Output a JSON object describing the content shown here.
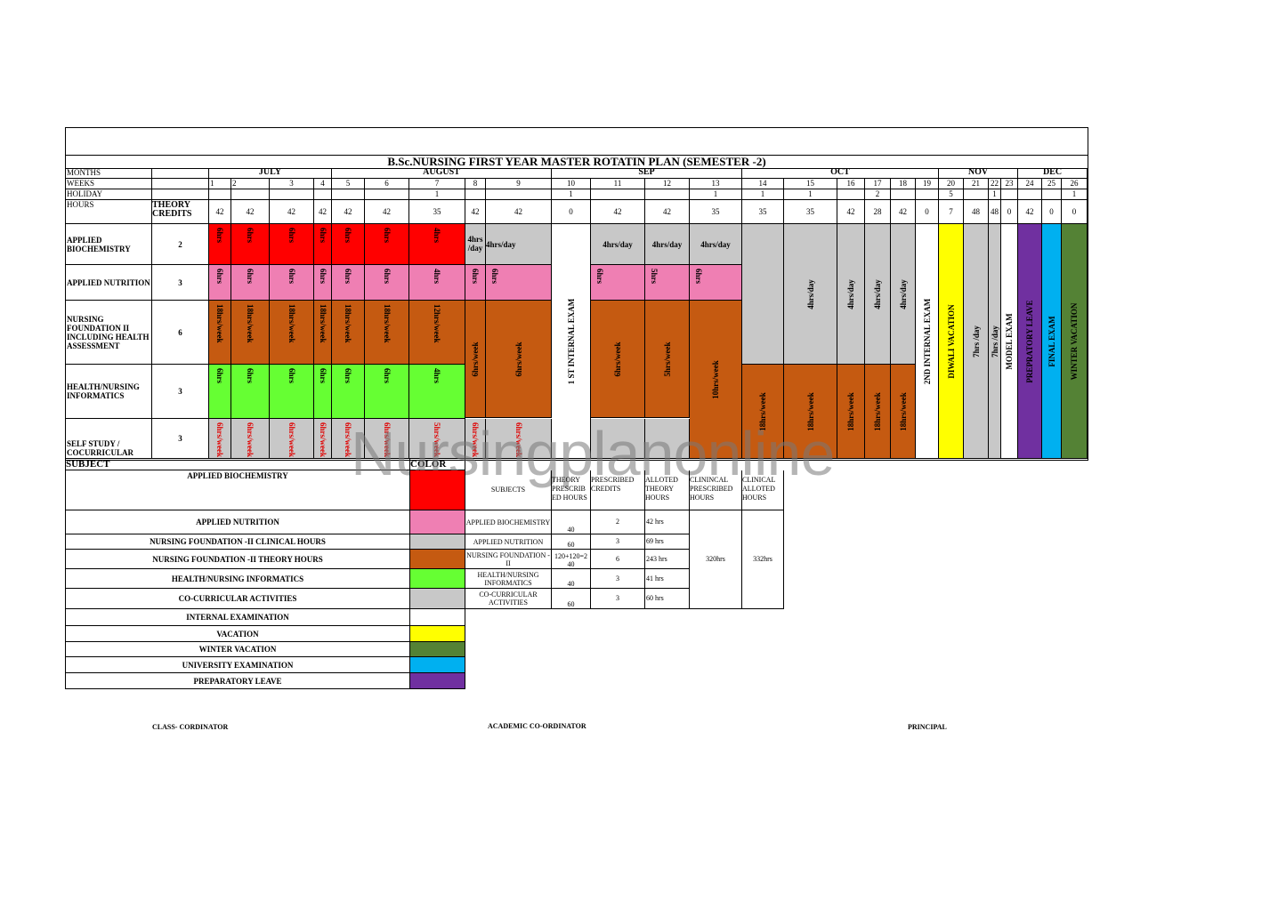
{
  "title": "B.Sc.NURSING FIRST YEAR MASTER ROTATIN PLAN (SEMESTER -2)",
  "row_labels": {
    "months": "MONTHS",
    "weeks": "WEEKS",
    "holiday": "HOLIDAY",
    "hours": "HOURS",
    "theory_credits": "THEORY CREDITS",
    "subject": "SUBJECT",
    "color": "COLOR"
  },
  "months": [
    "JULY",
    "AUGUST",
    "SEP",
    "OCT",
    "NOV",
    "DEC"
  ],
  "weeks": [
    "1",
    "2",
    "3",
    "4",
    "5",
    "6",
    "7",
    "8",
    "9",
    "10",
    "11",
    "12",
    "13",
    "14",
    "15",
    "16",
    "17",
    "18",
    "19",
    "20",
    "21",
    "22",
    "23",
    "24",
    "25",
    "26"
  ],
  "holidays": {
    "w7": "1",
    "w10": "1",
    "w13": "1",
    "w14": "1",
    "w15": "1",
    "w17": "2",
    "w20": "5",
    "w22": "1",
    "w26": "1"
  },
  "hours": [
    "42",
    "42",
    "42",
    "42",
    "42",
    "42",
    "35",
    "42",
    "42",
    "0",
    "42",
    "42",
    "35",
    "35",
    "35",
    "42",
    "28",
    "42",
    "0",
    "7",
    "48",
    "48",
    "0",
    "42",
    "0",
    "0"
  ],
  "subjects": [
    {
      "name": "APPLIED BIOCHEMISTRY",
      "credits": "2"
    },
    {
      "name": "APPLIED NUTRITION",
      "credits": "3"
    },
    {
      "name": "NURSING FOUNDATION II INCLUDING HEALTH ASSESSMENT",
      "credits": "6"
    },
    {
      "name": "HEALTH/NURSING INFORMATICS",
      "credits": "3"
    },
    {
      "name": "SELF STUDY / COCURRICULAR",
      "credits": "3"
    }
  ],
  "cells": {
    "six": "6hrs",
    "four": "4hrs",
    "five": "5hrs",
    "four_day": "4hrs/day",
    "four_day_short": "4hrs /day",
    "eighteen_week": "18hrs/week",
    "twelve_week": "12hrs/week",
    "six_week": "6hrs/week",
    "five_week": "5hrs/week",
    "ten_week": "10hrs/week",
    "seven_day": "7hrs /day"
  },
  "blocks": {
    "internal1": "1 ST INTERNAL EXAM",
    "internal2": "2ND INTERNAL  EXAM",
    "diwali": "DIWALI VACATION",
    "model": "MODEL EXAM",
    "prep": "PREPRATORY LEAVE",
    "final": "FINAL EXAM",
    "winter": "WINTER VACATION"
  },
  "legend": [
    {
      "label": "APPLIED BIOCHEMISTRY",
      "color": "#ff0000"
    },
    {
      "label": "APPLIED NUTRITION",
      "color": "#ef7fb3"
    },
    {
      "label": "NURSING FOUNDATION -II  CLINICAL HOURS",
      "color": "#c8c8c8"
    },
    {
      "label": "NURSING FOUNDATION -II  THEORY HOURS",
      "color": "#c55a11"
    },
    {
      "label": "HEALTH/NURSING INFORMATICS",
      "color": "#66ff33"
    },
    {
      "label": "CO-CURRICULAR ACTIVITIES",
      "color": "#c8c8c8"
    },
    {
      "label": "INTERNAL EXAMINATION",
      "color": "#ffffff"
    },
    {
      "label": "VACATION",
      "color": "#ffff00"
    },
    {
      "label": "WINTER VACATION",
      "color": "#548235"
    },
    {
      "label": "UNIVERSITY EXAMINATION",
      "color": "#00b0f0"
    },
    {
      "label": "PREPARATORY LEAVE",
      "color": "#7030a0"
    }
  ],
  "summary": {
    "headers": [
      "SUBJECTS",
      "THEORY PRESCRIB ED HOURS",
      "PRESCRIBED CREDITS",
      "ALLOTED THEORY HOURS",
      "CLININCAL PRESCRIBED HOURS",
      "CLINICAL ALLOTED HOURS"
    ],
    "rows": [
      {
        "subject": "APPLIED BIOCHEMISTRY",
        "theory": "40",
        "credits": "2",
        "alloted": "42 hrs"
      },
      {
        "subject": "APPLIED NUTRITION",
        "theory": "60",
        "credits": "3",
        "alloted": "69 hrs"
      },
      {
        "subject": "NURSING FOUNDATION -II",
        "theory": "120+120=2 40",
        "credits": "6",
        "alloted": "243 hrs"
      },
      {
        "subject": "HEALTH/NURSING INFORMATICS",
        "theory": "40",
        "credits": "3",
        "alloted": "41 hrs"
      },
      {
        "subject": "CO-CURRICULAR ACTIVITIES",
        "theory": "60",
        "credits": "3",
        "alloted": "60 hrs"
      }
    ],
    "clinical_prescribed": "320hrs",
    "clinical_alloted": "332hrs"
  },
  "signatures": [
    "CLASS- CORDINATOR",
    "ACADEMIC CO-ORDINATOR",
    "PRINCIPAL"
  ],
  "watermark": "Nursingplanonline"
}
